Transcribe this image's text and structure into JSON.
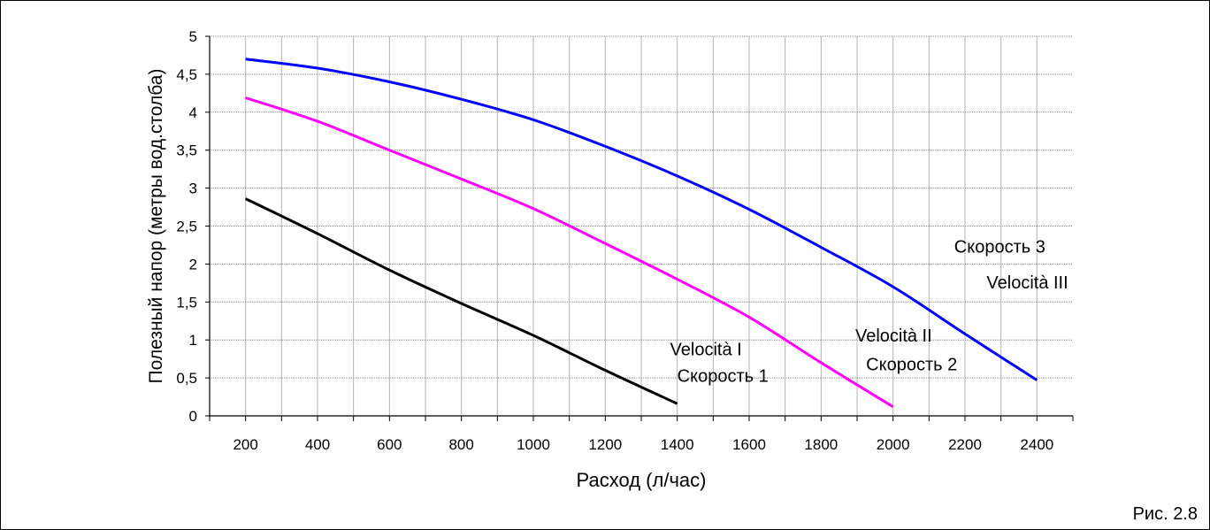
{
  "caption": "Рис. 2.8",
  "chart_data": {
    "type": "line",
    "title": "",
    "xlabel": "Расход (л/час)",
    "ylabel": "Полезный напор (метры вод.столба)",
    "xlim": [
      100,
      2500
    ],
    "ylim": [
      0,
      5
    ],
    "x_ticks": [
      "200",
      "400",
      "600",
      "800",
      "1000",
      "1200",
      "1400",
      "1600",
      "1800",
      "2000",
      "2200",
      "2400"
    ],
    "y_ticks": [
      "0",
      "0,5",
      "1",
      "1,5",
      "2",
      "2,5",
      "3",
      "3,5",
      "4",
      "4,5",
      "5"
    ],
    "grid": true,
    "series": [
      {
        "color": "#000000",
        "x": [
          200,
          400,
          600,
          800,
          1000,
          1200,
          1400
        ],
        "y": [
          2.86,
          2.4,
          1.92,
          1.48,
          1.06,
          0.6,
          0.16
        ]
      },
      {
        "color": "#ff00ff",
        "x": [
          200,
          400,
          600,
          800,
          1000,
          1200,
          1400,
          1600,
          1800,
          2000
        ],
        "y": [
          4.19,
          3.88,
          3.5,
          3.12,
          2.73,
          2.27,
          1.8,
          1.3,
          0.7,
          0.12
        ]
      },
      {
        "color": "#0000ff",
        "x": [
          200,
          400,
          600,
          800,
          1000,
          1200,
          1400,
          1600,
          1800,
          2000,
          2200,
          2400
        ],
        "y": [
          4.7,
          4.58,
          4.4,
          4.17,
          3.9,
          3.55,
          3.16,
          2.72,
          2.22,
          1.7,
          1.08,
          0.47
        ]
      }
    ],
    "annotations": [
      {
        "text": "Velocità I",
        "x": 1380,
        "y": 0.8
      },
      {
        "text": "Скорость 1",
        "x": 1400,
        "y": 0.45
      },
      {
        "text": "Velocità II",
        "x": 1895,
        "y": 0.98
      },
      {
        "text": "Скорость 2",
        "x": 1925,
        "y": 0.6
      },
      {
        "text": "Скорость 3",
        "x": 2170,
        "y": 2.15
      },
      {
        "text": "Velocità III",
        "x": 2260,
        "y": 1.68
      }
    ]
  }
}
